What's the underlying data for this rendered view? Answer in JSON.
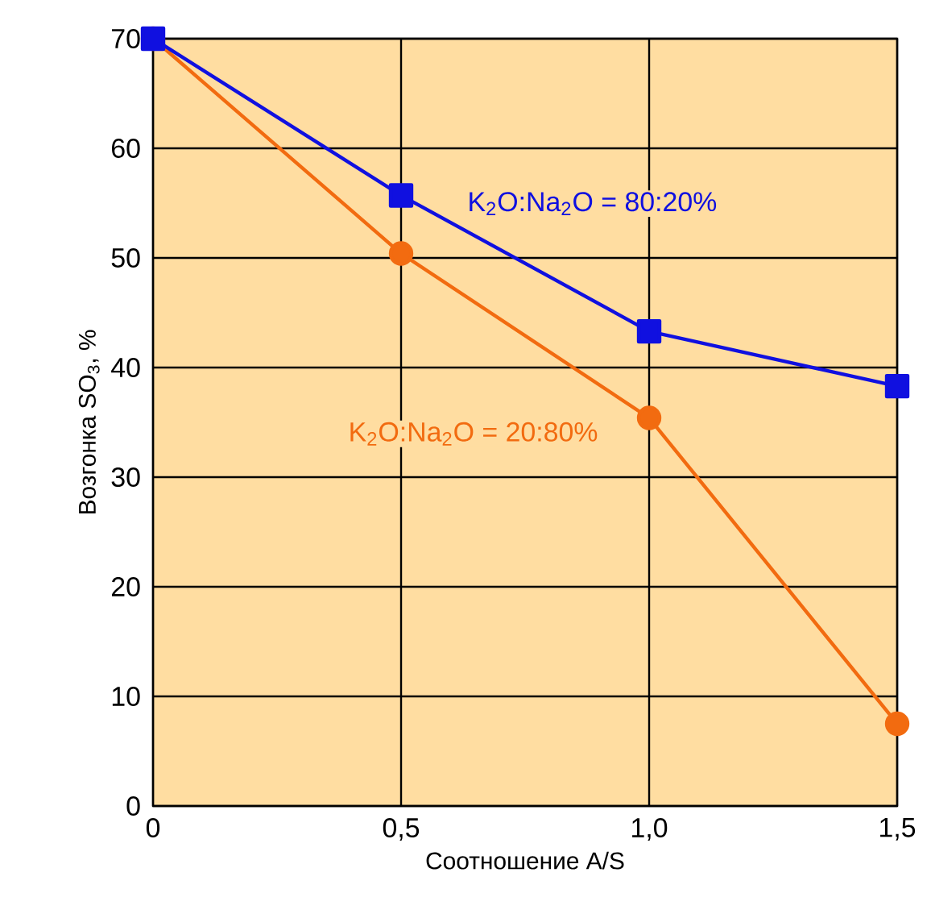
{
  "chart_data": {
    "type": "line",
    "xlabel": "Соотношение A/S",
    "ylabel": "Возгонка SO$_{3}$, %",
    "x": [
      0,
      0.5,
      1,
      1.5
    ],
    "series": [
      {
        "name": "K$_{2}$O:Na$_{2}$O = 80:20%",
        "color": "#1010e0",
        "values": [
          70,
          55.7,
          43.3,
          38.3
        ],
        "marker": "square"
      },
      {
        "name": "K$_{2}$O:Na$_{2}$O = 20:80%",
        "color": "#f26b10",
        "values": [
          70,
          50.4,
          35.4,
          7.5
        ],
        "marker": "circle"
      }
    ],
    "xlim": [
      0,
      1.5
    ],
    "ylim": [
      0,
      70
    ],
    "xticks": [
      0,
      {
        "value": 0.5,
        "label": "0,5"
      },
      {
        "value": 1,
        "label": "1,0"
      },
      {
        "value": 1.5,
        "label": "1,5"
      }
    ],
    "yticks": [
      0,
      10,
      20,
      30,
      40,
      50,
      60,
      70
    ],
    "grid": true,
    "line_style": "solid"
  }
}
